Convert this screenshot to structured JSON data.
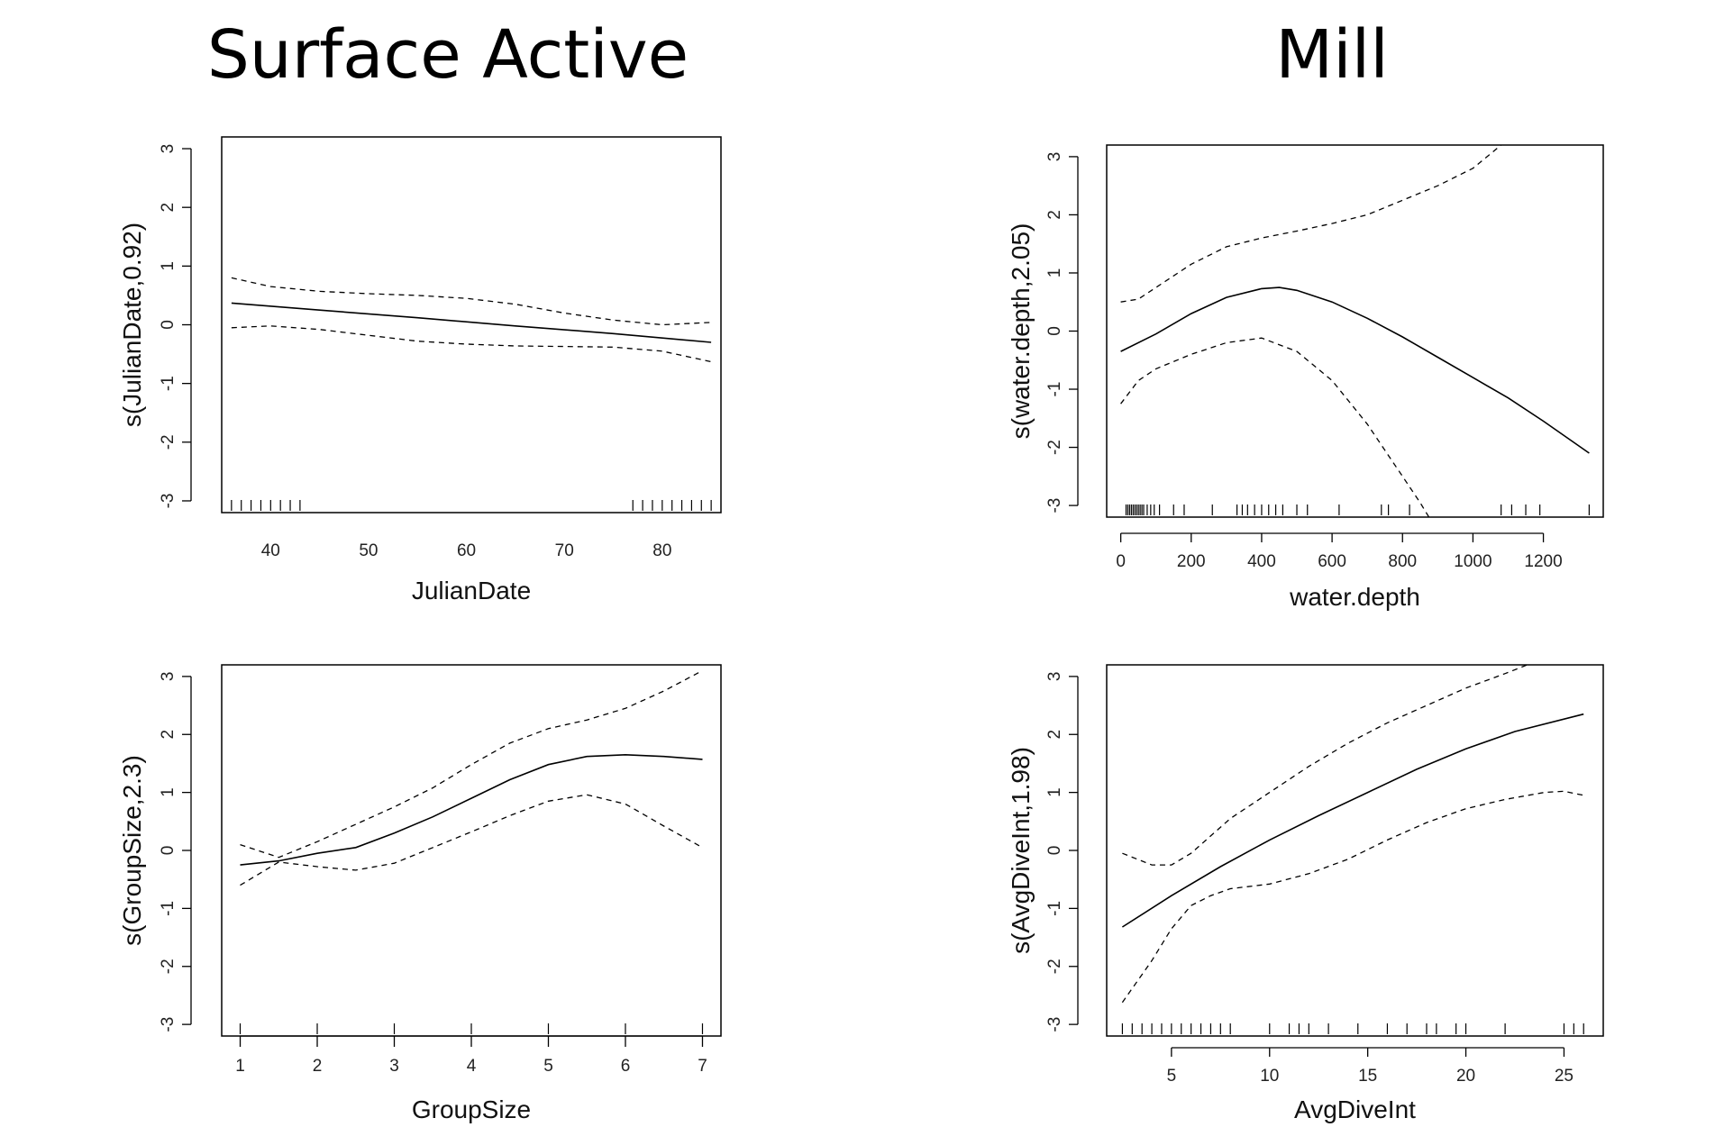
{
  "titles": {
    "left": "Surface Active",
    "right": "Mill"
  },
  "chart_data": [
    {
      "id": "julian",
      "type": "line",
      "xlabel": "JulianDate",
      "ylabel": "s(JulianDate,0.92)",
      "xlim": [
        35,
        86
      ],
      "ylim": [
        -3.2,
        3.2
      ],
      "xticks": [
        40,
        50,
        60,
        70,
        80
      ],
      "yticks": [
        -3,
        -2,
        -1,
        0,
        1,
        2,
        3
      ],
      "series": [
        {
          "role": "fit",
          "x": [
            36,
            45,
            55,
            65,
            75,
            85
          ],
          "y": [
            0.37,
            0.25,
            0.12,
            -0.02,
            -0.15,
            -0.3
          ]
        },
        {
          "role": "upper",
          "x": [
            36,
            40,
            45,
            50,
            55,
            60,
            65,
            70,
            75,
            80,
            85
          ],
          "y": [
            0.8,
            0.65,
            0.57,
            0.53,
            0.5,
            0.45,
            0.35,
            0.2,
            0.08,
            0.0,
            0.04
          ]
        },
        {
          "role": "lower",
          "x": [
            36,
            40,
            45,
            50,
            55,
            60,
            65,
            70,
            75,
            80,
            85
          ],
          "y": [
            -0.05,
            -0.02,
            -0.08,
            -0.18,
            -0.28,
            -0.33,
            -0.36,
            -0.37,
            -0.38,
            -0.45,
            -0.63
          ]
        }
      ],
      "rug": [
        36,
        37,
        38,
        39,
        40,
        41,
        42,
        43,
        77,
        78,
        79,
        80,
        81,
        82,
        83,
        84,
        85
      ]
    },
    {
      "id": "depth",
      "type": "line",
      "xlabel": "water.depth",
      "ylabel": "s(water.depth,2.05)",
      "xlim": [
        -40,
        1370
      ],
      "ylim": [
        -3.2,
        3.2
      ],
      "xticks": [
        0,
        200,
        400,
        600,
        800,
        1000,
        1200
      ],
      "yticks": [
        -3,
        -2,
        -1,
        0,
        1,
        2,
        3
      ],
      "series": [
        {
          "role": "fit",
          "x": [
            0,
            100,
            200,
            300,
            400,
            450,
            500,
            600,
            700,
            800,
            900,
            1000,
            1100,
            1200,
            1330
          ],
          "y": [
            -0.35,
            -0.05,
            0.3,
            0.58,
            0.73,
            0.75,
            0.7,
            0.5,
            0.22,
            -0.1,
            -0.45,
            -0.8,
            -1.15,
            -1.55,
            -2.1
          ]
        },
        {
          "role": "upper",
          "x": [
            0,
            50,
            100,
            200,
            300,
            400,
            500,
            600,
            700,
            800,
            900,
            1000,
            1050,
            1100
          ],
          "y": [
            0.5,
            0.55,
            0.75,
            1.15,
            1.45,
            1.6,
            1.72,
            1.85,
            2.0,
            2.25,
            2.5,
            2.8,
            3.05,
            3.3
          ]
        },
        {
          "role": "lower",
          "x": [
            0,
            50,
            100,
            200,
            300,
            400,
            500,
            600,
            700,
            750,
            800,
            850,
            880
          ],
          "y": [
            -1.25,
            -0.85,
            -0.65,
            -0.4,
            -0.2,
            -0.12,
            -0.35,
            -0.85,
            -1.6,
            -2.05,
            -2.5,
            -2.95,
            -3.25
          ]
        }
      ],
      "rug": [
        15,
        20,
        25,
        30,
        35,
        40,
        45,
        50,
        55,
        60,
        65,
        75,
        85,
        95,
        110,
        150,
        180,
        260,
        330,
        345,
        360,
        380,
        400,
        420,
        440,
        460,
        500,
        530,
        620,
        740,
        760,
        820,
        1080,
        1110,
        1150,
        1190,
        1330
      ]
    },
    {
      "id": "group",
      "type": "line",
      "xlabel": "GroupSize",
      "ylabel": "s(GroupSize,2.3)",
      "xlim": [
        0.76,
        7.24
      ],
      "ylim": [
        -3.2,
        3.2
      ],
      "xticks": [
        1,
        2,
        3,
        4,
        5,
        6,
        7
      ],
      "yticks": [
        -3,
        -2,
        -1,
        0,
        1,
        2,
        3
      ],
      "series": [
        {
          "role": "fit",
          "x": [
            1,
            1.5,
            2,
            2.5,
            3,
            3.5,
            4,
            4.5,
            5,
            5.5,
            6,
            6.5,
            7
          ],
          "y": [
            -0.25,
            -0.18,
            -0.05,
            0.05,
            0.3,
            0.58,
            0.9,
            1.22,
            1.48,
            1.62,
            1.65,
            1.62,
            1.57
          ]
        },
        {
          "role": "upper",
          "x": [
            1,
            1.5,
            2,
            2.5,
            3,
            3.5,
            4,
            4.5,
            5,
            5.5,
            6,
            6.5,
            7
          ],
          "y": [
            0.1,
            -0.12,
            0.15,
            0.45,
            0.75,
            1.08,
            1.48,
            1.85,
            2.1,
            2.25,
            2.45,
            2.75,
            3.1
          ]
        },
        {
          "role": "lower",
          "x": [
            1,
            1.5,
            2,
            2.5,
            3,
            3.5,
            4,
            4.5,
            5,
            5.5,
            6,
            6.5,
            7
          ],
          "y": [
            -0.6,
            -0.2,
            -0.28,
            -0.34,
            -0.22,
            0.05,
            0.32,
            0.6,
            0.85,
            0.96,
            0.8,
            0.42,
            0.05
          ]
        }
      ],
      "rug": [
        1,
        2,
        3,
        4,
        5,
        6,
        7
      ]
    },
    {
      "id": "dive",
      "type": "line",
      "xlabel": "AvgDiveInt",
      "ylabel": "s(AvgDiveInt,1.98)",
      "xlim": [
        1.7,
        27.0
      ],
      "ylim": [
        -3.2,
        3.2
      ],
      "xticks": [
        5,
        10,
        15,
        20,
        25
      ],
      "yticks": [
        -3,
        -2,
        -1,
        0,
        1,
        2,
        3
      ],
      "series": [
        {
          "role": "fit",
          "x": [
            2.5,
            5,
            7.5,
            10,
            12.5,
            15,
            17.5,
            20,
            22.5,
            26
          ],
          "y": [
            -1.32,
            -0.78,
            -0.28,
            0.18,
            0.6,
            1.0,
            1.4,
            1.75,
            2.05,
            2.35
          ]
        },
        {
          "role": "upper",
          "x": [
            2.5,
            4,
            5,
            6,
            7,
            8,
            10,
            12,
            14,
            16,
            18,
            20,
            22,
            23.5
          ],
          "y": [
            -0.05,
            -0.25,
            -0.25,
            -0.05,
            0.25,
            0.55,
            1.0,
            1.45,
            1.85,
            2.2,
            2.5,
            2.8,
            3.05,
            3.25
          ]
        },
        {
          "role": "lower",
          "x": [
            2.5,
            4,
            5,
            6,
            7,
            8,
            10,
            12,
            14,
            16,
            18,
            20,
            22,
            24,
            25,
            26
          ],
          "y": [
            -2.62,
            -1.9,
            -1.35,
            -0.95,
            -0.78,
            -0.66,
            -0.58,
            -0.4,
            -0.15,
            0.18,
            0.48,
            0.72,
            0.88,
            1.0,
            1.02,
            0.95
          ]
        }
      ],
      "rug": [
        2.5,
        3,
        3.5,
        4,
        4.5,
        5,
        5.5,
        6,
        6.5,
        7,
        7.5,
        8,
        10,
        11,
        11.5,
        12,
        13,
        14.5,
        16,
        17,
        18,
        18.5,
        19.5,
        20,
        22,
        25,
        25.5,
        26
      ]
    }
  ]
}
